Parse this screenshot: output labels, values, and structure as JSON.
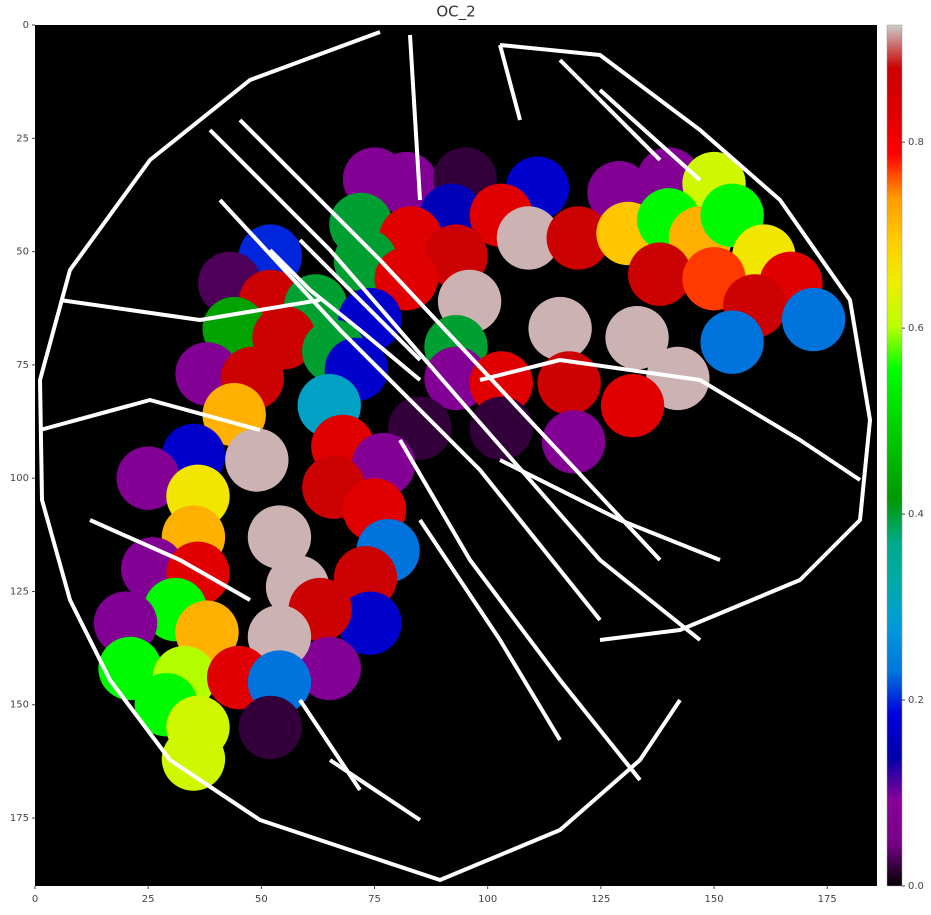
{
  "chart_data": {
    "type": "heatmap",
    "title": "OC_2",
    "colormap": "nipy_spectral",
    "background": "#000000",
    "outline_color": "#ffffff",
    "xlim": [
      0,
      186
    ],
    "ylim": [
      190,
      0
    ],
    "xticks": [
      0,
      25,
      50,
      75,
      100,
      125,
      150,
      175
    ],
    "yticks": [
      0,
      25,
      50,
      75,
      100,
      125,
      150,
      175
    ],
    "clim": [
      0,
      0.926
    ],
    "cticks": [
      {
        "value": 0,
        "label": "0.0"
      },
      0.2,
      0.4,
      0.6,
      0.8
    ],
    "x": [
      75,
      82,
      95,
      111,
      129,
      140,
      150,
      72,
      92,
      103,
      83,
      109,
      120,
      131,
      140,
      147,
      154,
      161,
      52,
      73,
      93,
      82,
      43,
      52,
      62,
      74,
      96,
      138,
      150,
      167,
      159,
      172,
      154,
      116,
      133,
      44,
      55,
      66,
      93,
      38,
      48,
      71,
      93,
      103,
      118,
      142,
      132,
      65,
      44,
      119,
      103,
      85,
      68,
      35,
      49,
      25,
      77,
      36,
      66,
      75,
      35,
      54,
      26,
      36,
      78,
      73,
      58,
      31,
      38,
      74,
      20,
      63,
      65,
      54,
      21,
      33,
      45,
      54,
      29,
      36,
      35,
      52
    ],
    "y": [
      34,
      35,
      34,
      36,
      37,
      34,
      35,
      44,
      42,
      42,
      47,
      47,
      47,
      46,
      43,
      47,
      42,
      51,
      51,
      52,
      51,
      56,
      57,
      61,
      62,
      65,
      61,
      55,
      56,
      57,
      62,
      65,
      70,
      67,
      69,
      67,
      69,
      72,
      71,
      77,
      78,
      76,
      78,
      79,
      79,
      78,
      84,
      84,
      86,
      92,
      89,
      89,
      93,
      95,
      96,
      100,
      97,
      104,
      102,
      107,
      113,
      113,
      120,
      121,
      116,
      122,
      124,
      129,
      134,
      132,
      132,
      129,
      142,
      135,
      142,
      144,
      144,
      145,
      150,
      155,
      162,
      155
    ],
    "values": [
      0.08,
      0.08,
      0.02,
      0.17,
      0.08,
      0.08,
      0.62,
      0.4,
      0.15,
      0.83,
      0.83,
      0.92,
      0.88,
      0.7,
      0.55,
      0.72,
      0.55,
      0.66,
      0.2,
      0.4,
      0.88,
      0.83,
      0.03,
      0.88,
      0.4,
      0.17,
      0.92,
      0.88,
      0.77,
      0.83,
      0.88,
      0.23,
      0.23,
      0.92,
      0.92,
      0.43,
      0.88,
      0.4,
      0.4,
      0.08,
      0.88,
      0.17,
      0.08,
      0.83,
      0.88,
      0.92,
      0.83,
      0.3,
      0.72,
      0.08,
      0.02,
      0.02,
      0.83,
      0.17,
      0.92,
      0.08,
      0.08,
      0.66,
      0.88,
      0.83,
      0.72,
      0.92,
      0.08,
      0.83,
      0.23,
      0.88,
      0.92,
      0.55,
      0.72,
      0.17,
      0.08,
      0.88,
      0.08,
      0.92,
      0.55,
      0.6,
      0.83,
      0.23,
      0.55,
      0.62,
      0.62,
      0.02
    ]
  }
}
